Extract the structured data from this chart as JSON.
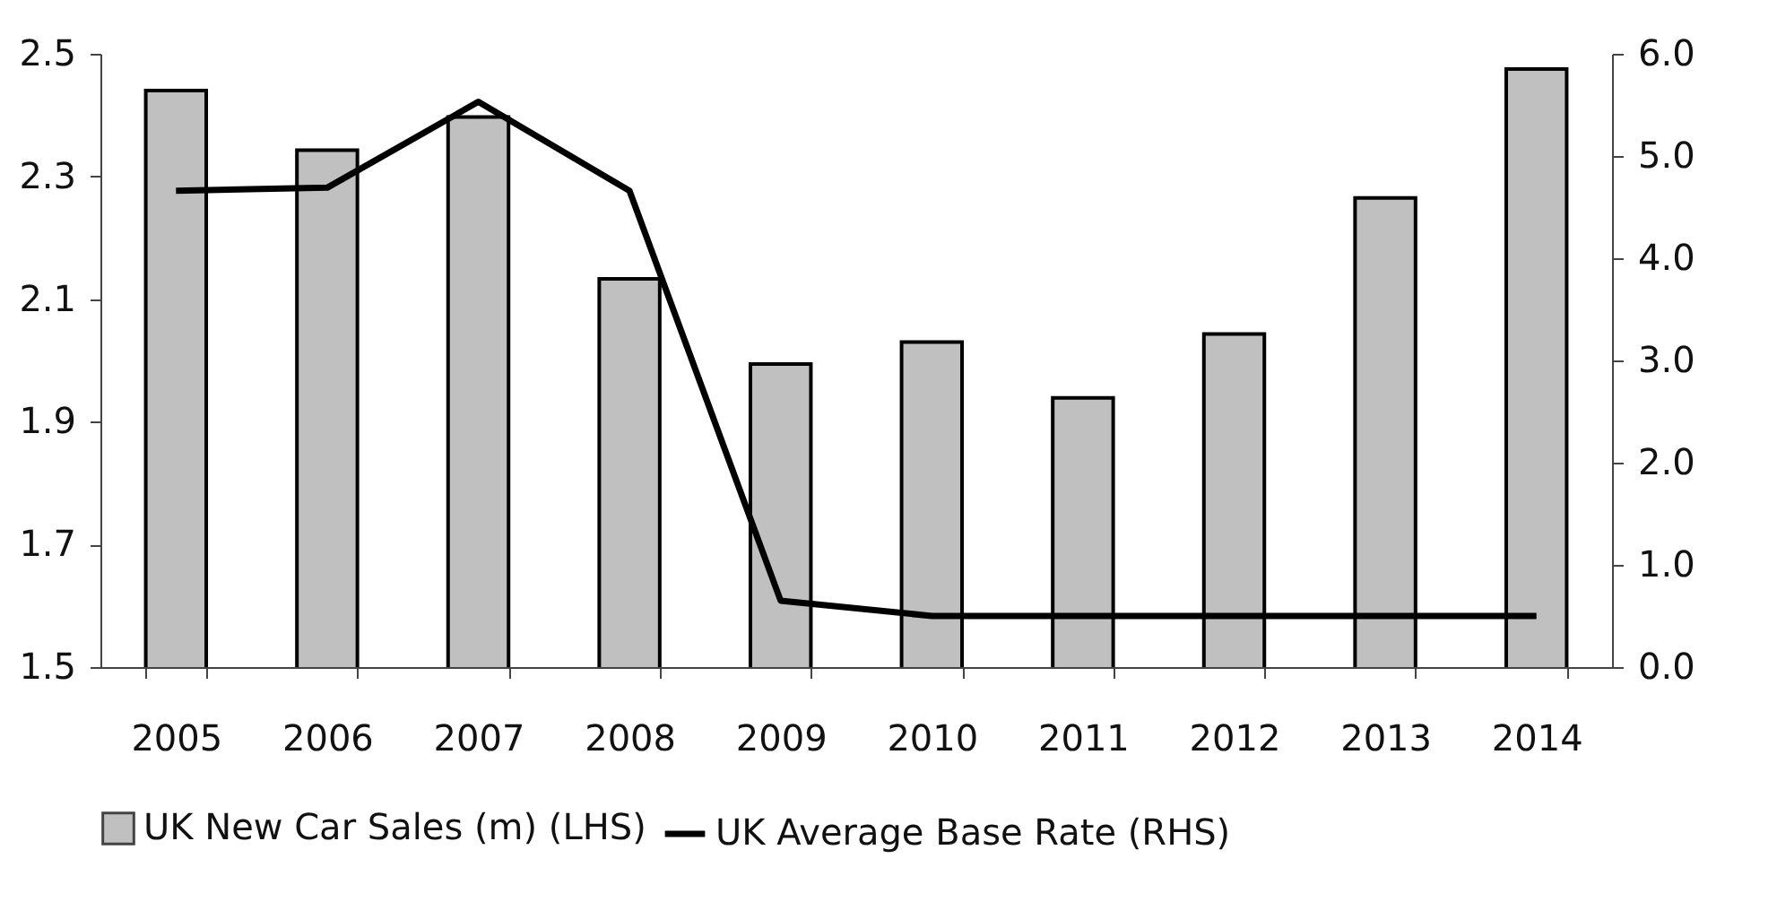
{
  "chart_data": {
    "type": "bar",
    "categories": [
      "2005",
      "2006",
      "2007",
      "2008",
      "2009",
      "2010",
      "2011",
      "2012",
      "2013",
      "2014"
    ],
    "series": [
      {
        "name": "UK New Car Sales (m) (LHS)",
        "color": "#c0c0c0",
        "values": [
          2.44,
          2.343,
          2.397,
          2.133,
          1.994,
          2.03,
          1.939,
          2.043,
          2.265,
          2.475
        ]
      },
      {
        "name": "UK Average Base Rate (RHS)",
        "type": "line",
        "axis": "y2",
        "color": "#000000",
        "values": [
          4.66,
          4.69,
          5.53,
          4.66,
          0.65,
          0.5,
          0.5,
          0.5,
          0.5,
          0.5
        ]
      }
    ],
    "ylim": [
      1.5,
      2.5
    ],
    "yticks": [
      1.5,
      1.7,
      1.9,
      2.1,
      2.3,
      2.5
    ],
    "y2lim": [
      0,
      6
    ],
    "y2ticks": [
      {
        "value": 0,
        "label": "0.0"
      },
      {
        "value": 1,
        "label": "1.0"
      },
      {
        "value": 2,
        "label": "2.0"
      },
      {
        "value": 3,
        "label": "3.0"
      },
      {
        "value": 4,
        "label": "4.0"
      },
      {
        "value": 5,
        "label": "5.0"
      },
      {
        "value": 6,
        "label": "6.0"
      }
    ],
    "grid": false,
    "legend": "bottom",
    "marker": "none",
    "line_style": "solid"
  }
}
